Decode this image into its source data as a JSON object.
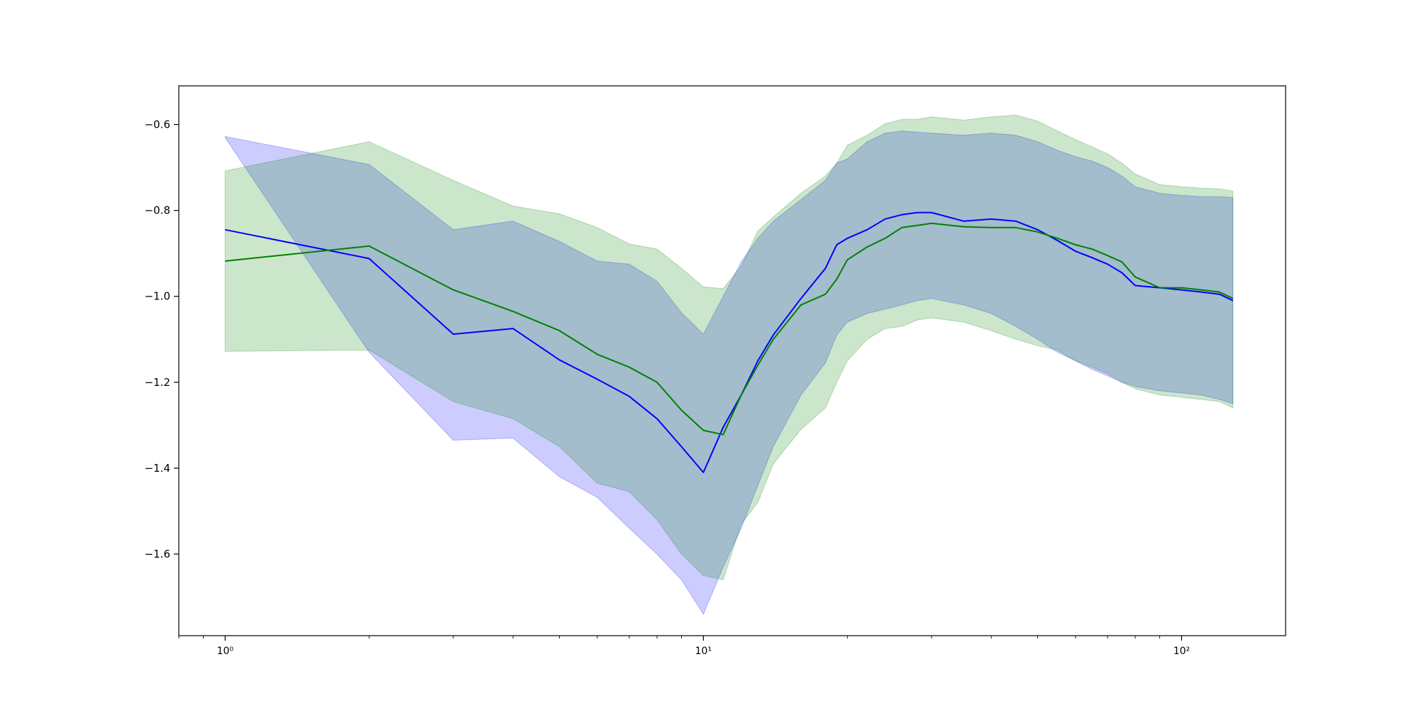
{
  "chart_data": {
    "type": "line",
    "title": "",
    "xlabel": "",
    "ylabel": "",
    "xscale": "log",
    "xlim": [
      0.8,
      165
    ],
    "ylim": [
      -1.79,
      -0.51
    ],
    "grid": false,
    "legend": "none",
    "x_ticks": [
      {
        "value": 1,
        "label": "10⁰"
      },
      {
        "value": 10,
        "label": "10¹"
      },
      {
        "value": 100,
        "label": "10²"
      }
    ],
    "y_ticks": [
      {
        "value": -0.6,
        "label": "−0.6"
      },
      {
        "value": -0.8,
        "label": "−0.8"
      },
      {
        "value": -1.0,
        "label": "−1.0"
      },
      {
        "value": -1.2,
        "label": "−1.2"
      },
      {
        "value": -1.4,
        "label": "−1.4"
      },
      {
        "value": -1.6,
        "label": "−1.6"
      }
    ],
    "series": [
      {
        "color": "#0000ff",
        "band_color": "#0000ff",
        "band_opacity": 0.2,
        "x": [
          1,
          2,
          3,
          4,
          5,
          6,
          7,
          8,
          9,
          10,
          11,
          12,
          13,
          14,
          16,
          18,
          19,
          20,
          22,
          24,
          26,
          28,
          30,
          35,
          40,
          45,
          50,
          55,
          60,
          65,
          70,
          75,
          80,
          90,
          100,
          110,
          120,
          128
        ],
        "mean": [
          -0.845,
          -0.912,
          -1.088,
          -1.075,
          -1.148,
          -1.193,
          -1.233,
          -1.285,
          -1.35,
          -1.41,
          -1.305,
          -1.23,
          -1.15,
          -1.09,
          -1.005,
          -0.935,
          -0.88,
          -0.865,
          -0.845,
          -0.82,
          -0.81,
          -0.805,
          -0.805,
          -0.825,
          -0.82,
          -0.825,
          -0.845,
          -0.87,
          -0.895,
          -0.91,
          -0.925,
          -0.945,
          -0.975,
          -0.98,
          -0.985,
          -0.99,
          -0.995,
          -1.01
        ],
        "upper": [
          -0.628,
          -0.693,
          -0.845,
          -0.825,
          -0.872,
          -0.918,
          -0.925,
          -0.965,
          -1.038,
          -1.088,
          -1.0,
          -0.92,
          -0.865,
          -0.825,
          -0.775,
          -0.73,
          -0.69,
          -0.68,
          -0.64,
          -0.62,
          -0.615,
          -0.618,
          -0.62,
          -0.625,
          -0.62,
          -0.625,
          -0.64,
          -0.66,
          -0.675,
          -0.685,
          -0.7,
          -0.72,
          -0.745,
          -0.76,
          -0.765,
          -0.768,
          -0.768,
          -0.77
        ],
        "lower": [
          -0.63,
          -1.13,
          -1.335,
          -1.33,
          -1.42,
          -1.468,
          -1.54,
          -1.6,
          -1.66,
          -1.74,
          -1.63,
          -1.54,
          -1.44,
          -1.35,
          -1.23,
          -1.155,
          -1.09,
          -1.06,
          -1.04,
          -1.03,
          -1.02,
          -1.01,
          -1.005,
          -1.02,
          -1.04,
          -1.07,
          -1.1,
          -1.13,
          -1.15,
          -1.17,
          -1.185,
          -1.2,
          -1.21,
          -1.22,
          -1.225,
          -1.23,
          -1.24,
          -1.25
        ]
      },
      {
        "color": "#008000",
        "band_color": "#008000",
        "band_opacity": 0.2,
        "x": [
          1,
          2,
          3,
          4,
          5,
          6,
          7,
          8,
          9,
          10,
          11,
          12,
          13,
          14,
          16,
          18,
          19,
          20,
          22,
          24,
          26,
          28,
          30,
          35,
          40,
          45,
          50,
          55,
          60,
          65,
          70,
          75,
          80,
          90,
          100,
          110,
          120,
          128
        ],
        "mean": [
          -0.918,
          -0.883,
          -0.985,
          -1.035,
          -1.08,
          -1.135,
          -1.165,
          -1.2,
          -1.265,
          -1.312,
          -1.322,
          -1.23,
          -1.16,
          -1.1,
          -1.02,
          -0.995,
          -0.96,
          -0.915,
          -0.885,
          -0.865,
          -0.84,
          -0.835,
          -0.83,
          -0.838,
          -0.84,
          -0.84,
          -0.85,
          -0.865,
          -0.88,
          -0.89,
          -0.905,
          -0.92,
          -0.955,
          -0.98,
          -0.98,
          -0.985,
          -0.99,
          -1.005
        ],
        "upper": [
          -0.708,
          -0.64,
          -0.73,
          -0.79,
          -0.808,
          -0.84,
          -0.878,
          -0.89,
          -0.935,
          -0.978,
          -0.982,
          -0.93,
          -0.848,
          -0.815,
          -0.76,
          -0.72,
          -0.69,
          -0.648,
          -0.625,
          -0.598,
          -0.588,
          -0.588,
          -0.582,
          -0.59,
          -0.582,
          -0.578,
          -0.592,
          -0.615,
          -0.635,
          -0.652,
          -0.668,
          -0.69,
          -0.715,
          -0.74,
          -0.745,
          -0.748,
          -0.75,
          -0.755
        ],
        "lower": [
          -1.128,
          -1.125,
          -1.245,
          -1.285,
          -1.35,
          -1.435,
          -1.455,
          -1.52,
          -1.6,
          -1.65,
          -1.66,
          -1.53,
          -1.48,
          -1.39,
          -1.31,
          -1.26,
          -1.2,
          -1.15,
          -1.1,
          -1.075,
          -1.07,
          -1.055,
          -1.05,
          -1.06,
          -1.08,
          -1.1,
          -1.115,
          -1.125,
          -1.15,
          -1.165,
          -1.18,
          -1.2,
          -1.215,
          -1.23,
          -1.235,
          -1.24,
          -1.245,
          -1.26
        ]
      }
    ]
  }
}
